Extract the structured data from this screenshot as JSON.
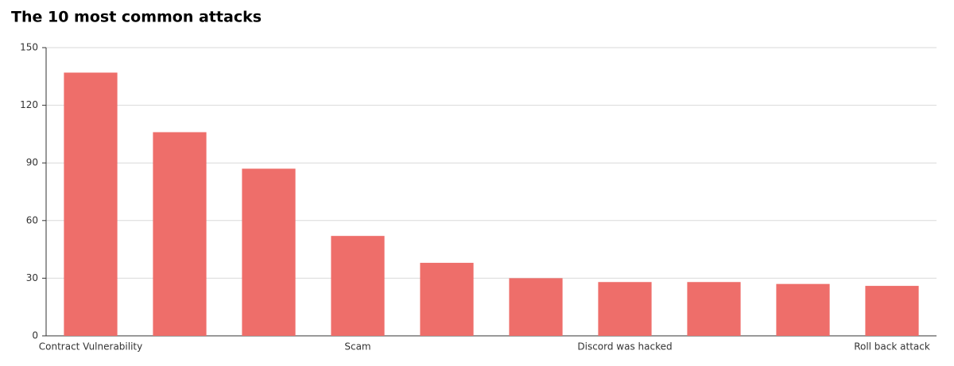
{
  "chart_data": {
    "type": "bar",
    "title": "The 10 most common attacks",
    "categories": [
      "Contract Vulnerability",
      null,
      null,
      "Scam",
      null,
      null,
      "Discord was hacked",
      null,
      null,
      "Roll back attack"
    ],
    "values": [
      137,
      106,
      87,
      52,
      38,
      30,
      28,
      28,
      27,
      26
    ],
    "color": "#ee6e6a",
    "ylim": [
      0,
      150
    ],
    "yticks": [
      0,
      30,
      60,
      90,
      120,
      150
    ],
    "grid": true
  }
}
